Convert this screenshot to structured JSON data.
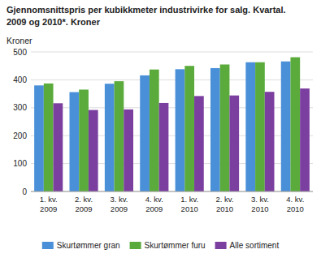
{
  "chart_data": {
    "type": "bar",
    "title": "Gjennomsnittspris per kubikkmeter industrivirke for salg. Kvartal.",
    "subtitle": "2009 og 2010*. Kroner",
    "ylabel": "Kroner",
    "categories": [
      "1. kv.\n2009",
      "2. kv.\n2009",
      "3. kv.\n2009",
      "4. kv.\n2009",
      "1. kv.\n2010",
      "2. kv.\n2010",
      "3. kv.\n2010",
      "4. kv.\n2010"
    ],
    "series": [
      {
        "name": "Skurtømmer gran",
        "color": "#4a90d9",
        "values": [
          380,
          356,
          386,
          416,
          438,
          442,
          463,
          466
        ]
      },
      {
        "name": "Skurtømmer furu",
        "color": "#5aab3c",
        "values": [
          387,
          365,
          395,
          437,
          450,
          455,
          463,
          481
        ]
      },
      {
        "name": "Alle sortiment",
        "color": "#7b3fa0",
        "values": [
          316,
          292,
          294,
          317,
          342,
          344,
          357,
          369
        ]
      }
    ],
    "ylim": [
      0,
      500
    ],
    "yticks": [
      0,
      100,
      200,
      300,
      400,
      500
    ],
    "grid": true,
    "legend": "bottom"
  }
}
